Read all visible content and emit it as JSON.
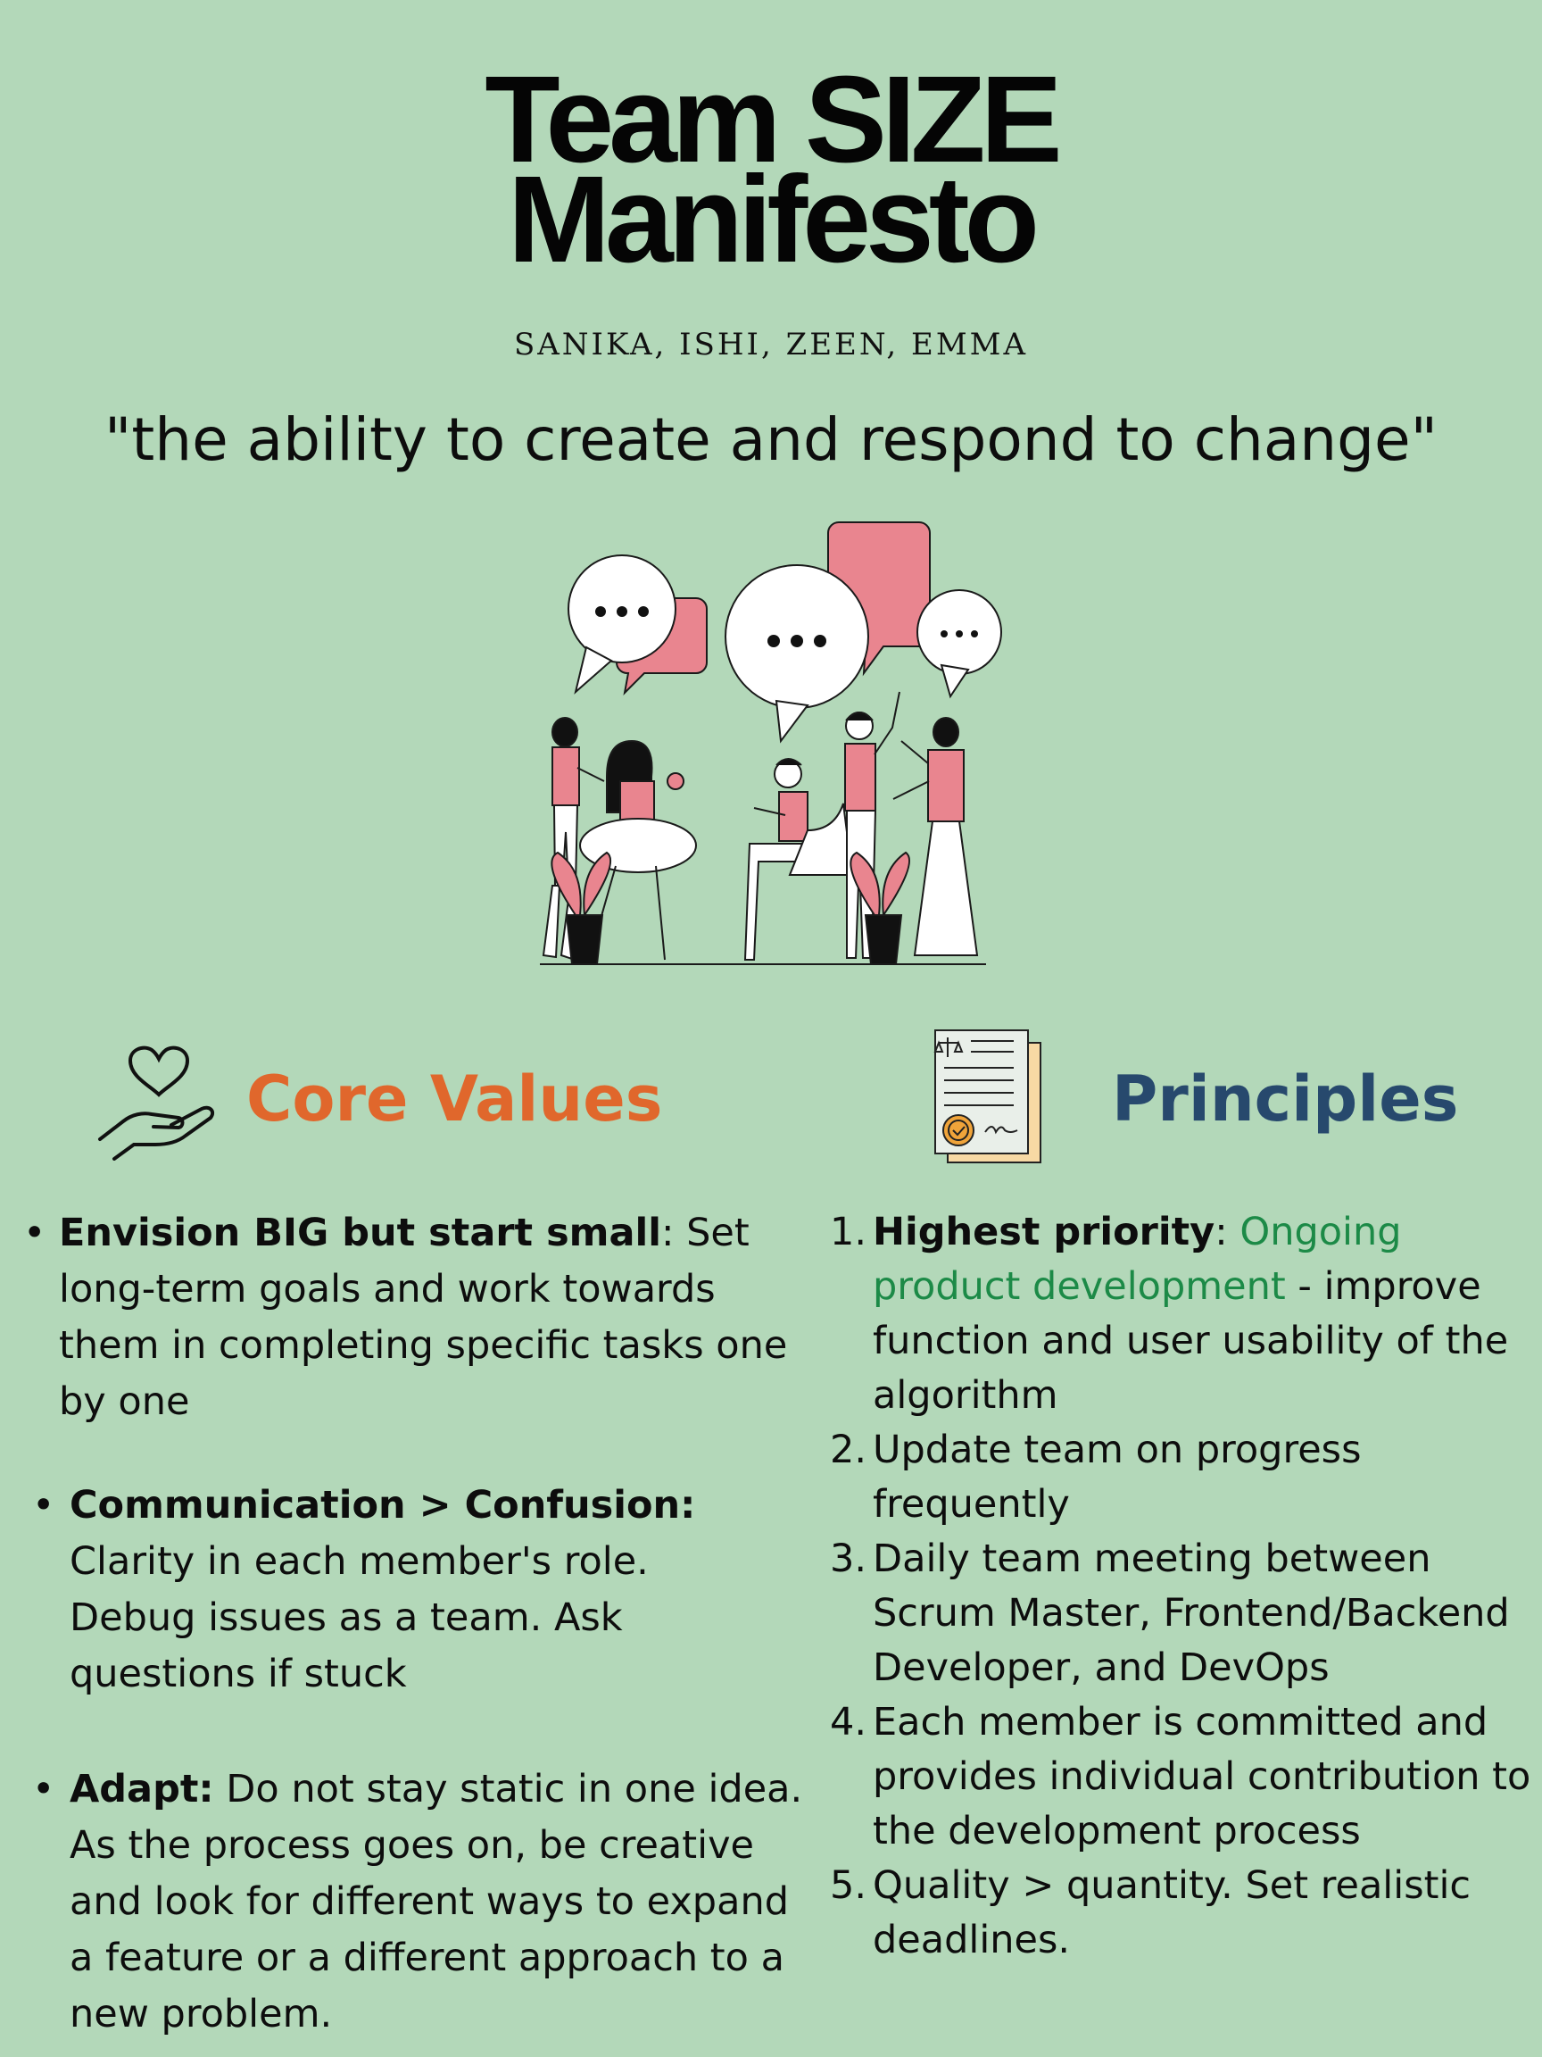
{
  "header": {
    "title_line1": "Team SIZE",
    "title_line2": "Manifesto",
    "authors": "SANIKA, ISHI, ZEEN, EMMA",
    "quote": "\"the ability to create and respond to change\""
  },
  "illustration": {
    "icon": "team-conversation-illustration",
    "accent": "#e9858f"
  },
  "core_values": {
    "heading": "Core Values",
    "heading_color": "#e0672c",
    "icon": "heart-in-hand-icon",
    "items": [
      {
        "bullet": "•",
        "bold": "Envision BIG but start small",
        "text": ": Set long-term goals and work towards them in completing specific tasks one by one"
      },
      {
        "bullet": "•",
        "bold": "Communication > Confusion:",
        "text": " Clarity in each member's role.  Debug issues as a team. Ask questions if stuck"
      },
      {
        "bullet": "•",
        "bold": "Adapt:",
        "text": " Do not stay static in one idea. As the process goes on, be creative and look for different ways to expand a feature or a different approach to a new problem."
      }
    ]
  },
  "principles": {
    "heading": "Principles",
    "heading_color": "#27496d",
    "icon": "certificate-document-icon",
    "items": [
      {
        "num": "1.",
        "bold": "Highest priority",
        "sep": ": ",
        "green": "Ongoing product development",
        "text": " - improve function and user usability of the algorithm"
      },
      {
        "num": "2.",
        "text": "Update team on progress frequently"
      },
      {
        "num": "3.",
        "text": "Daily team meeting between Scrum Master, Frontend/Backend Developer, and DevOps"
      },
      {
        "num": "4.",
        "text": "Each member is committed and provides individual contribution to the development process"
      },
      {
        "num": "5.",
        "text": "Quality > quantity. Set realistic deadlines."
      }
    ]
  }
}
